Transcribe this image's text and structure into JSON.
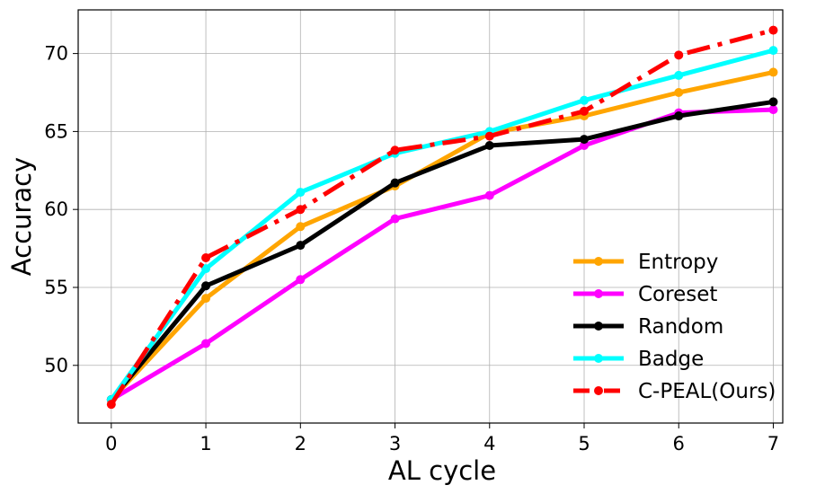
{
  "chart_data": {
    "type": "line",
    "title": "",
    "xlabel": "AL cycle",
    "ylabel": "Accuracy",
    "x": [
      0,
      1,
      2,
      3,
      4,
      5,
      6,
      7
    ],
    "xlim": [
      -0.35,
      7.1
    ],
    "ylim": [
      46.3,
      72.8
    ],
    "xticks": [
      "0",
      "1",
      "2",
      "3",
      "4",
      "5",
      "6",
      "7"
    ],
    "yticks": [
      "50",
      "55",
      "60",
      "65",
      "70"
    ],
    "grid": true,
    "legend_position": "lower-right",
    "series": [
      {
        "name": "Entropy",
        "color": "#ffa500",
        "style": "solid",
        "values": [
          47.8,
          54.3,
          58.9,
          61.5,
          64.9,
          66.0,
          67.5,
          68.8
        ]
      },
      {
        "name": "Coreset",
        "color": "#ff00ff",
        "style": "solid",
        "values": [
          47.8,
          51.4,
          55.5,
          59.4,
          60.9,
          64.1,
          66.2,
          66.4
        ]
      },
      {
        "name": "Random",
        "color": "#000000",
        "style": "solid",
        "values": [
          47.8,
          55.1,
          57.7,
          61.7,
          64.1,
          64.5,
          66.0,
          66.9
        ]
      },
      {
        "name": "Badge",
        "color": "#00ffff",
        "style": "solid",
        "values": [
          47.8,
          56.2,
          61.1,
          63.6,
          65.0,
          67.0,
          68.6,
          70.2
        ]
      },
      {
        "name": "C-PEAL(Ours)",
        "color": "#ff0000",
        "style": "dashdot",
        "values": [
          47.5,
          56.9,
          60.0,
          63.8,
          64.7,
          66.3,
          69.9,
          71.5
        ]
      }
    ]
  }
}
